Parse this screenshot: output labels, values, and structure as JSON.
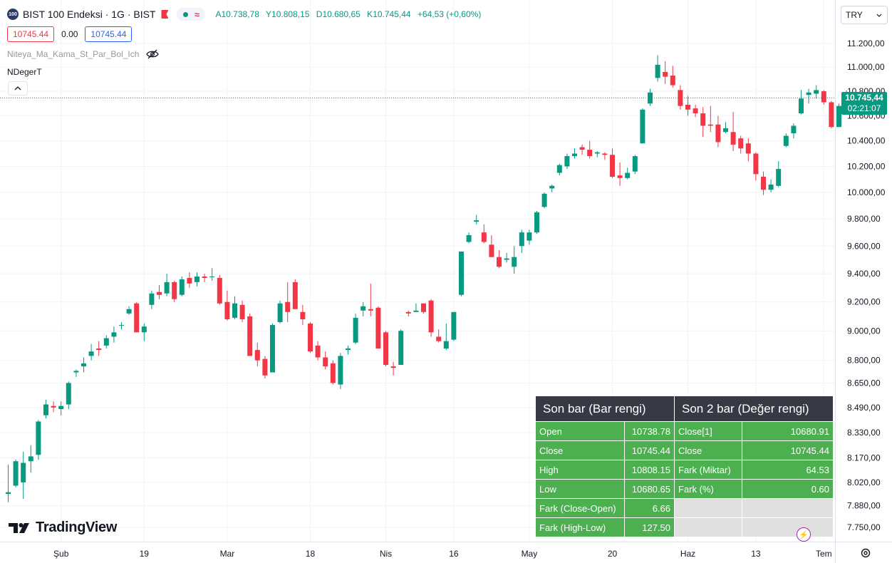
{
  "header": {
    "symbol_badge": "100",
    "symbol_title": "BIST 100 Endeksi · 1G · BIST",
    "open_label": "A",
    "open_value": "10.738,78",
    "high_label": "Y",
    "high_value": "10.808,15",
    "low_label": "D",
    "low_value": "10.680,65",
    "close_label": "K",
    "close_value": "10.745,44",
    "change": "+64,53 (+0,60%)"
  },
  "price_boxes": {
    "bid": "10745.44",
    "spread": "0.00",
    "ask": "10745.44"
  },
  "indicators": {
    "first": "Niteya_Ma_Kama_St_Par_Bol_Ich",
    "second": "NDegerT"
  },
  "currency": "TRY",
  "last_price": {
    "price": "10.745,44",
    "countdown": "02:21:07"
  },
  "brand": "TradingView",
  "colors": {
    "up": "#089981",
    "down": "#f23645",
    "table_header": "#363a45",
    "table_green": "#4caf50",
    "table_empty": "#e0e0e0"
  },
  "table": {
    "headers": [
      "Son bar (Bar rengi)",
      "Son 2 bar (Değer rengi)"
    ],
    "rows": [
      [
        "Open",
        "10738.78",
        "Close[1]",
        "10680.91"
      ],
      [
        "Close",
        "10745.44",
        "Close",
        "10745.44"
      ],
      [
        "High",
        "10808.15",
        "Fark (Miktar)",
        "64.53"
      ],
      [
        "Low",
        "10680.65",
        "Fark (%)",
        "0.60"
      ],
      [
        "Fark (Close-Open)",
        "6.66",
        "",
        ""
      ],
      [
        "Fark (High-Low)",
        "127.50",
        "",
        ""
      ]
    ]
  },
  "chart_data": {
    "type": "candlestick",
    "y_tick_labels": [
      "11.200,00",
      "11.000,00",
      "10.800,00",
      "10.600,00",
      "10.400,00",
      "10.200,00",
      "10.000,00",
      "9.800,00",
      "9.600,00",
      "9.400,00",
      "9.200,00",
      "9.000,00",
      "8.800,00",
      "8.650,00",
      "8.490,00",
      "8.330,00",
      "8.170,00",
      "8.020,00",
      "7.880,00",
      "7.750,00"
    ],
    "y_tick_values": [
      11200,
      11000,
      10800,
      10600,
      10400,
      10200,
      10000,
      9800,
      9600,
      9400,
      9200,
      9000,
      8800,
      8650,
      8490,
      8330,
      8170,
      8020,
      7880,
      7750
    ],
    "y_scale": "log",
    "x_tick_labels": [
      "Şub",
      "19",
      "Mar",
      "18",
      "Nis",
      "16",
      "May",
      "20",
      "Haz",
      "13",
      "Tem"
    ],
    "x_tick_bar_index": [
      7,
      18,
      29,
      40,
      50,
      59,
      69,
      80,
      90,
      99,
      108
    ],
    "candles": [
      [
        7950,
        7960,
        7900,
        8130
      ],
      [
        8000,
        8150,
        7990,
        8160
      ],
      [
        8020,
        8140,
        7920,
        8210
      ],
      [
        8150,
        8180,
        8080,
        8250
      ],
      [
        8190,
        8400,
        8160,
        8410
      ],
      [
        8440,
        8510,
        8420,
        8540
      ],
      [
        8500,
        8490,
        8460,
        8530
      ],
      [
        8480,
        8500,
        8440,
        8530
      ],
      [
        8510,
        8650,
        8480,
        8660
      ],
      [
        8720,
        8730,
        8690,
        8740
      ],
      [
        8760,
        8780,
        8720,
        8820
      ],
      [
        8830,
        8860,
        8800,
        8910
      ],
      [
        8880,
        8870,
        8830,
        8930
      ],
      [
        8900,
        8950,
        8880,
        8970
      ],
      [
        8960,
        8990,
        8920,
        9030
      ],
      [
        9040,
        9040,
        9010,
        9060
      ],
      [
        9120,
        9150,
        9110,
        9170
      ],
      [
        9190,
        8990,
        8990,
        9200
      ],
      [
        8990,
        9030,
        8930,
        9050
      ],
      [
        9180,
        9260,
        9150,
        9280
      ],
      [
        9270,
        9250,
        9220,
        9320
      ],
      [
        9260,
        9340,
        9240,
        9400
      ],
      [
        9340,
        9220,
        9200,
        9350
      ],
      [
        9250,
        9360,
        9240,
        9380
      ],
      [
        9370,
        9330,
        9300,
        9410
      ],
      [
        9340,
        9380,
        9310,
        9410
      ],
      [
        9380,
        9370,
        9340,
        9400
      ],
      [
        9380,
        9380,
        9350,
        9440
      ],
      [
        9370,
        9190,
        9180,
        9390
      ],
      [
        9200,
        9080,
        9070,
        9280
      ],
      [
        9090,
        9190,
        9080,
        9240
      ],
      [
        9180,
        9080,
        9060,
        9210
      ],
      [
        9100,
        8830,
        8830,
        9120
      ],
      [
        8870,
        8800,
        8760,
        8920
      ],
      [
        8810,
        8700,
        8680,
        8830
      ],
      [
        8720,
        9040,
        8720,
        9050
      ],
      [
        9060,
        9190,
        9050,
        9210
      ],
      [
        9200,
        9130,
        9060,
        9340
      ],
      [
        9340,
        9150,
        9150,
        9360
      ],
      [
        9130,
        9080,
        9040,
        9180
      ],
      [
        9050,
        8860,
        8850,
        9060
      ],
      [
        8900,
        8820,
        8800,
        8930
      ],
      [
        8820,
        8760,
        8740,
        8860
      ],
      [
        8780,
        8650,
        8640,
        8800
      ],
      [
        8640,
        8830,
        8610,
        8850
      ],
      [
        8870,
        8880,
        8840,
        8900
      ],
      [
        8920,
        9090,
        8910,
        9120
      ],
      [
        9140,
        9170,
        9100,
        9200
      ],
      [
        9150,
        9140,
        9100,
        9330
      ],
      [
        9160,
        8880,
        8880,
        9170
      ],
      [
        8990,
        8770,
        8760,
        9000
      ],
      [
        8760,
        8750,
        8700,
        8790
      ],
      [
        8770,
        9000,
        8770,
        9010
      ],
      [
        9130,
        9120,
        9100,
        9140
      ],
      [
        9130,
        9140,
        9130,
        9190
      ],
      [
        9190,
        9130,
        9120,
        9190
      ],
      [
        9210,
        8990,
        8960,
        9220
      ],
      [
        8960,
        8930,
        8920,
        9010
      ],
      [
        8880,
        8930,
        8870,
        9050
      ],
      [
        8940,
        9130,
        8930,
        9130
      ],
      [
        9250,
        9560,
        9240,
        9560
      ],
      [
        9630,
        9680,
        9620,
        9700
      ],
      [
        9780,
        9790,
        9760,
        9830
      ],
      [
        9700,
        9630,
        9620,
        9760
      ],
      [
        9610,
        9520,
        9520,
        9680
      ],
      [
        9520,
        9450,
        9440,
        9570
      ],
      [
        9500,
        9510,
        9480,
        9550
      ],
      [
        9450,
        9520,
        9400,
        9600
      ],
      [
        9600,
        9700,
        9550,
        9720
      ],
      [
        9640,
        9700,
        9610,
        9720
      ],
      [
        9700,
        9850,
        9690,
        9860
      ],
      [
        9890,
        9990,
        9880,
        10000
      ],
      [
        10030,
        10050,
        10000,
        10060
      ],
      [
        10150,
        10210,
        10130,
        10220
      ],
      [
        10200,
        10280,
        10180,
        10300
      ],
      [
        10280,
        10300,
        10260,
        10340
      ],
      [
        10350,
        10330,
        10290,
        10370
      ],
      [
        10330,
        10280,
        10260,
        10400
      ],
      [
        10300,
        10310,
        10270,
        10320
      ],
      [
        10300,
        10290,
        10250,
        10310
      ],
      [
        10290,
        10120,
        10110,
        10340
      ],
      [
        10130,
        10110,
        10050,
        10230
      ],
      [
        10110,
        10150,
        10100,
        10190
      ],
      [
        10160,
        10280,
        10140,
        10290
      ],
      [
        10380,
        10650,
        10380,
        10660
      ],
      [
        10700,
        10790,
        10680,
        10820
      ],
      [
        10910,
        11020,
        10880,
        11100
      ],
      [
        10960,
        10920,
        10860,
        11050
      ],
      [
        10930,
        10850,
        10830,
        11010
      ],
      [
        10810,
        10680,
        10650,
        10850
      ],
      [
        10690,
        10650,
        10600,
        10760
      ],
      [
        10660,
        10620,
        10590,
        10690
      ],
      [
        10620,
        10520,
        10430,
        10670
      ],
      [
        10530,
        10520,
        10470,
        10680
      ],
      [
        10530,
        10390,
        10350,
        10600
      ],
      [
        10470,
        10500,
        10460,
        10550
      ],
      [
        10470,
        10370,
        10320,
        10630
      ],
      [
        10420,
        10340,
        10300,
        10440
      ],
      [
        10380,
        10300,
        10240,
        10420
      ],
      [
        10300,
        10140,
        10090,
        10310
      ],
      [
        10120,
        10020,
        9980,
        10160
      ],
      [
        10020,
        10060,
        10000,
        10100
      ],
      [
        10050,
        10180,
        10040,
        10240
      ],
      [
        10360,
        10440,
        10350,
        10460
      ],
      [
        10460,
        10520,
        10420,
        10540
      ],
      [
        10620,
        10740,
        10610,
        10810
      ],
      [
        10770,
        10790,
        10700,
        10820
      ],
      [
        10780,
        10810,
        10740,
        10850
      ],
      [
        10800,
        10710,
        10690,
        10810
      ],
      [
        10710,
        10510,
        10500,
        10720
      ],
      [
        10510,
        10680,
        10510,
        10700
      ],
      [
        10739,
        10745,
        10681,
        10808
      ]
    ],
    "last_close": 10745.44
  }
}
